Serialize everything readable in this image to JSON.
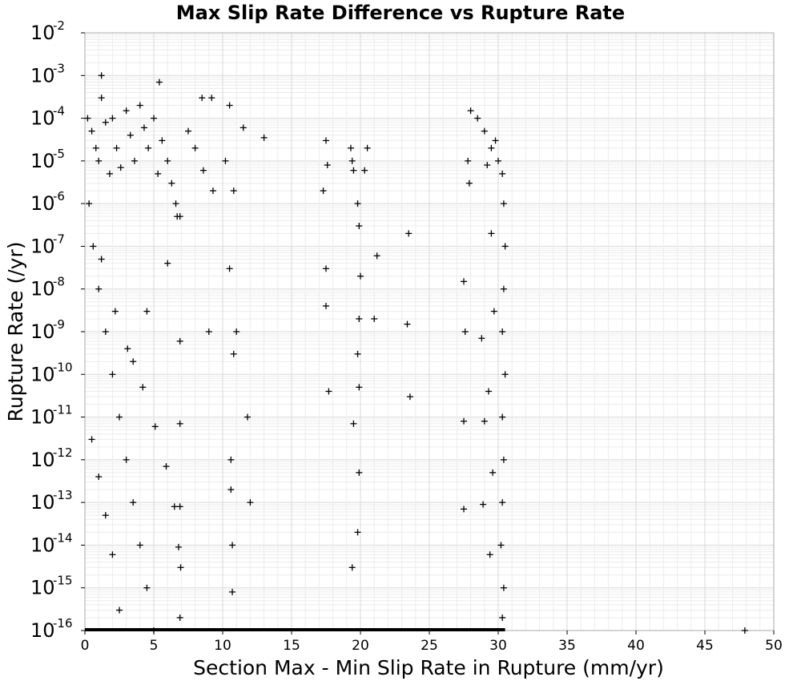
{
  "chart_data": {
    "type": "scatter",
    "title": "Max Slip Rate Difference vs Rupture Rate",
    "xlabel": "Section Max - Min Slip Rate in Rupture (mm/yr)",
    "ylabel": "Rupture Rate (/yr)",
    "xlim": [
      0,
      50
    ],
    "ylim": [
      1e-16,
      0.01
    ],
    "y_scale": "log",
    "x_ticks": [
      0,
      5,
      10,
      15,
      20,
      25,
      30,
      35,
      40,
      45,
      50
    ],
    "y_ticks_exp": [
      -16,
      -15,
      -14,
      -13,
      -12,
      -11,
      -10,
      -9,
      -8,
      -7,
      -6,
      -5,
      -4,
      -3,
      -2
    ],
    "grid": true,
    "marker": "plus",
    "color": "#000000",
    "points": [
      [
        0.2,
        0.0001
      ],
      [
        0.5,
        5e-05
      ],
      [
        0.8,
        2e-05
      ],
      [
        1.0,
        1e-05
      ],
      [
        1.2,
        0.0003
      ],
      [
        1.5,
        8e-05
      ],
      [
        1.8,
        5e-06
      ],
      [
        2.0,
        0.0001
      ],
      [
        2.3,
        2e-05
      ],
      [
        2.6,
        7e-06
      ],
      [
        3.0,
        0.00015
      ],
      [
        3.3,
        4e-05
      ],
      [
        3.6,
        1e-05
      ],
      [
        4.0,
        0.0002
      ],
      [
        4.3,
        6e-05
      ],
      [
        4.6,
        2e-05
      ],
      [
        5.0,
        0.0001
      ],
      [
        5.3,
        5e-06
      ],
      [
        5.6,
        3e-05
      ],
      [
        6.0,
        1e-05
      ],
      [
        6.3,
        3e-06
      ],
      [
        6.6,
        1e-06
      ],
      [
        6.9,
        5e-07
      ],
      [
        1.2,
        0.001
      ],
      [
        5.4,
        0.0007
      ],
      [
        8.5,
        0.0003
      ],
      [
        9.2,
        0.0003
      ],
      [
        10.5,
        0.0002
      ],
      [
        11.5,
        6e-05
      ],
      [
        13.0,
        3.5e-05
      ],
      [
        7.5,
        5e-05
      ],
      [
        8.0,
        2e-05
      ],
      [
        8.6,
        6e-06
      ],
      [
        9.3,
        2e-06
      ],
      [
        10.2,
        1e-05
      ],
      [
        10.8,
        2e-06
      ],
      [
        0.3,
        1e-06
      ],
      [
        0.6,
        1e-07
      ],
      [
        1.0,
        1e-08
      ],
      [
        1.5,
        1e-09
      ],
      [
        2.0,
        1e-10
      ],
      [
        2.5,
        1e-11
      ],
      [
        3.0,
        1e-12
      ],
      [
        3.5,
        1e-13
      ],
      [
        4.0,
        1e-14
      ],
      [
        4.5,
        1e-15
      ],
      [
        5.0,
        1e-16
      ],
      [
        1.2,
        5e-08
      ],
      [
        2.2,
        3e-09
      ],
      [
        3.1,
        4e-10
      ],
      [
        4.2,
        5e-11
      ],
      [
        5.1,
        6e-12
      ],
      [
        5.9,
        7e-13
      ],
      [
        6.5,
        8e-14
      ],
      [
        6.8,
        9e-15
      ],
      [
        6.9,
        2e-16
      ],
      [
        0.5,
        3e-12
      ],
      [
        1.0,
        4e-13
      ],
      [
        1.5,
        5e-14
      ],
      [
        2.0,
        6e-15
      ],
      [
        2.5,
        3e-16
      ],
      [
        3.5,
        2e-10
      ],
      [
        4.5,
        3e-09
      ],
      [
        6.0,
        4e-08
      ],
      [
        6.7,
        5e-07
      ],
      [
        6.9,
        6e-10
      ],
      [
        6.9,
        7e-12
      ],
      [
        6.9,
        8e-14
      ],
      [
        6.95,
        3e-15
      ],
      [
        9.0,
        1e-09
      ],
      [
        10.5,
        3e-08
      ],
      [
        10.8,
        3e-10
      ],
      [
        10.6,
        1e-12
      ],
      [
        10.6,
        2e-13
      ],
      [
        10.7,
        1e-14
      ],
      [
        10.7,
        8e-16
      ],
      [
        11.0,
        1e-09
      ],
      [
        11.8,
        1e-11
      ],
      [
        12.0,
        1e-13
      ],
      [
        17.5,
        3e-05
      ],
      [
        17.6,
        8e-06
      ],
      [
        17.3,
        2e-06
      ],
      [
        17.5,
        3e-08
      ],
      [
        17.5,
        4e-09
      ],
      [
        17.7,
        4e-11
      ],
      [
        19.3,
        2e-05
      ],
      [
        19.4,
        1e-05
      ],
      [
        19.5,
        6e-06
      ],
      [
        19.8,
        1e-06
      ],
      [
        19.9,
        3e-07
      ],
      [
        20.0,
        2e-08
      ],
      [
        19.9,
        2e-09
      ],
      [
        19.8,
        3e-10
      ],
      [
        19.9,
        5e-11
      ],
      [
        19.5,
        7e-12
      ],
      [
        19.9,
        5e-13
      ],
      [
        19.8,
        2e-14
      ],
      [
        19.4,
        3e-15
      ],
      [
        20.5,
        2e-05
      ],
      [
        20.3,
        6e-06
      ],
      [
        21.2,
        6e-08
      ],
      [
        21.0,
        2e-09
      ],
      [
        23.5,
        2e-07
      ],
      [
        23.4,
        1.5e-09
      ],
      [
        23.6,
        3e-11
      ],
      [
        27.5,
        1.5e-08
      ],
      [
        27.6,
        1e-09
      ],
      [
        27.5,
        8e-12
      ],
      [
        27.5,
        7e-14
      ],
      [
        28.0,
        0.00015
      ],
      [
        28.5,
        0.0001
      ],
      [
        29.0,
        5e-05
      ],
      [
        29.5,
        2e-05
      ],
      [
        30.0,
        1e-05
      ],
      [
        30.3,
        5e-06
      ],
      [
        30.4,
        1e-06
      ],
      [
        30.5,
        1e-07
      ],
      [
        30.4,
        1e-08
      ],
      [
        30.3,
        1e-09
      ],
      [
        30.5,
        1e-10
      ],
      [
        30.3,
        1e-11
      ],
      [
        30.4,
        1e-12
      ],
      [
        30.3,
        1e-13
      ],
      [
        30.2,
        1e-14
      ],
      [
        30.4,
        1e-15
      ],
      [
        30.3,
        2e-16
      ],
      [
        29.8,
        3e-05
      ],
      [
        29.2,
        8e-06
      ],
      [
        29.5,
        2e-07
      ],
      [
        29.7,
        3e-09
      ],
      [
        29.3,
        4e-11
      ],
      [
        29.6,
        5e-13
      ],
      [
        29.4,
        6e-15
      ],
      [
        28.8,
        7e-10
      ],
      [
        29.0,
        8e-12
      ],
      [
        28.9,
        9e-14
      ],
      [
        27.8,
        1e-05
      ],
      [
        27.9,
        3e-06
      ],
      [
        47.9,
        1e-16
      ]
    ]
  }
}
